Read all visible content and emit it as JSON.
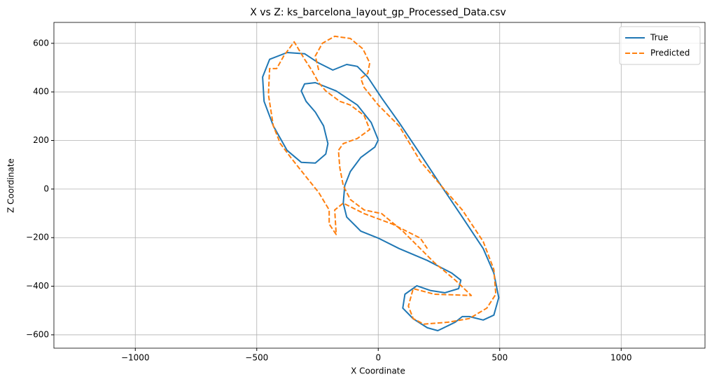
{
  "chart_data": {
    "type": "line",
    "title": "X vs Z: ks_barcelona_layout_gp_Processed_Data.csv",
    "xlabel": "X Coordinate",
    "ylabel": "Z Coordinate",
    "xlim": [
      -1335,
      1345
    ],
    "ylim": [
      -655,
      686
    ],
    "xticks": [
      {
        "value": -1000,
        "label": "−1000"
      },
      {
        "value": -500,
        "label": "−500"
      },
      0,
      500,
      1000
    ],
    "yticks": [
      {
        "value": -600,
        "label": "−600"
      },
      {
        "value": -400,
        "label": "−400"
      },
      {
        "value": -200,
        "label": "−200"
      },
      0,
      200,
      400,
      600
    ],
    "grid": true,
    "legend": "upper right",
    "series": [
      {
        "name": "True",
        "color": "#1f77b4",
        "linestyle": "solid",
        "x": [
          0,
          -29,
          -86,
          -173,
          -259,
          -303,
          -317,
          -297,
          -259,
          -225,
          -207,
          -216,
          -259,
          -317,
          -375,
          -432,
          -470,
          -476,
          -447,
          -375,
          -303,
          -245,
          -187,
          -130,
          -86,
          -43,
          14,
          86,
          173,
          259,
          346,
          432,
          476,
          496,
          476,
          432,
          375,
          346,
          317,
          288,
          245,
          202,
          144,
          101,
          110,
          159,
          216,
          274,
          331,
          340,
          303,
          202,
          86,
          0,
          -72,
          -130,
          -144,
          -138,
          -115,
          -72,
          -14,
          0
        ],
        "values": [
          202,
          274,
          346,
          404,
          438,
          433,
          404,
          361,
          317,
          260,
          187,
          144,
          107,
          110,
          159,
          260,
          361,
          461,
          534,
          562,
          557,
          519,
          490,
          513,
          505,
          461,
          375,
          274,
          144,
          14,
          -115,
          -245,
          -346,
          -447,
          -519,
          -539,
          -525,
          -525,
          -548,
          -562,
          -583,
          -571,
          -534,
          -490,
          -433,
          -398,
          -418,
          -427,
          -410,
          -375,
          -346,
          -294,
          -245,
          -202,
          -173,
          -115,
          -58,
          14,
          72,
          130,
          173,
          202
        ]
      },
      {
        "name": "Predicted",
        "color": "#ff7f0e",
        "linestyle": "dashed",
        "x": [
          -245,
          -259,
          -230,
          -179,
          -115,
          -63,
          -35,
          -43,
          -72,
          -58,
          0,
          86,
          173,
          259,
          346,
          432,
          476,
          484,
          447,
          375,
          288,
          187,
          144,
          124,
          144,
          231,
          383,
          317,
          231,
          173,
          101,
          14,
          -58,
          -115,
          -144,
          -158,
          -164,
          -144,
          -86,
          -35,
          -58,
          -115,
          -158,
          -216,
          -245,
          -274,
          -303,
          -346,
          -389,
          -418,
          -447,
          -452,
          -432,
          -403,
          -360,
          -303,
          -245,
          -202,
          -202,
          -173,
          -179,
          -144,
          -58,
          58,
          173,
          202
        ],
        "values": [
          490,
          548,
          600,
          629,
          620,
          577,
          519,
          476,
          456,
          418,
          346,
          260,
          115,
          14,
          -86,
          -216,
          -331,
          -433,
          -490,
          -533,
          -548,
          -556,
          -533,
          -482,
          -410,
          -433,
          -438,
          -375,
          -303,
          -245,
          -173,
          -101,
          -86,
          -43,
          14,
          87,
          159,
          187,
          208,
          245,
          303,
          346,
          361,
          404,
          438,
          490,
          534,
          606,
          548,
          496,
          496,
          389,
          260,
          187,
          130,
          58,
          -14,
          -86,
          -144,
          -187,
          -86,
          -58,
          -101,
          -144,
          -202,
          -245
        ]
      }
    ]
  }
}
